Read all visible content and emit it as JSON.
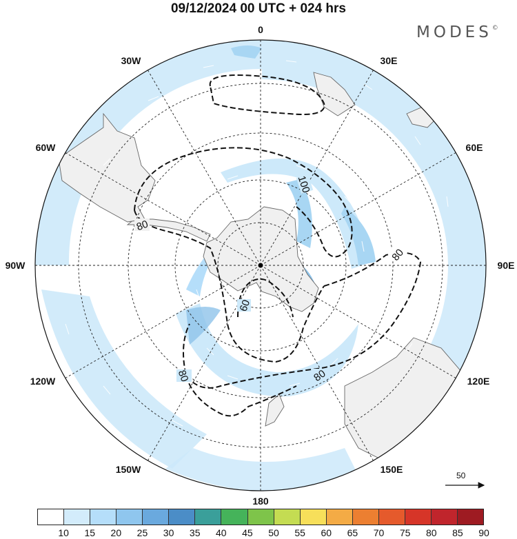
{
  "header": {
    "title": "09/12/2024  00 UTC  + 024 hrs",
    "brand": "MODES",
    "brand_mark": "©"
  },
  "map": {
    "projection": "south polar stereographic",
    "longitude_labels": {
      "top": "0",
      "top_right": "30E",
      "right_upper": "60E",
      "right": "90E",
      "right_lower": "120E",
      "bottom_right": "150E",
      "bottom": "180",
      "bottom_left": "150W",
      "left_lower": "120W",
      "left": "90W",
      "left_upper": "60W",
      "top_left": "30W"
    },
    "contours": [
      {
        "value": "100",
        "style": "dashed"
      },
      {
        "value": "80",
        "style": "dashed"
      },
      {
        "value": "80",
        "style": "dashed"
      },
      {
        "value": "80",
        "style": "dashed"
      },
      {
        "value": "80",
        "style": "dashed"
      },
      {
        "value": "60",
        "style": "dashed"
      }
    ],
    "vector_reference": {
      "value": "50"
    },
    "colors": {
      "land": "#f0f0f0",
      "coast": "#666666",
      "wind_light": "#cde9fa",
      "wind_mid": "#a8d6f3",
      "wind_strong": "#8ec3ea"
    }
  },
  "colorbar": {
    "ticks": [
      "10",
      "15",
      "20",
      "25",
      "30",
      "35",
      "40",
      "45",
      "50",
      "55",
      "60",
      "65",
      "70",
      "75",
      "80",
      "85",
      "90"
    ],
    "colors": [
      "#ffffff",
      "#d3ecfb",
      "#b5defa",
      "#8fc6ee",
      "#6aa9de",
      "#4b8dc7",
      "#3a9f9a",
      "#45b35a",
      "#7ec44a",
      "#c4dc52",
      "#f7df5a",
      "#f4ab45",
      "#ec7f31",
      "#e55a2c",
      "#d63528",
      "#c0252c",
      "#9e1b22"
    ]
  }
}
